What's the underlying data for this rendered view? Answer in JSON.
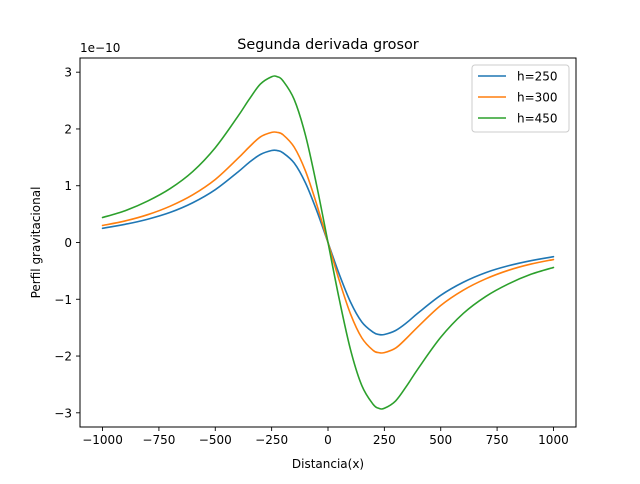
{
  "chart_data": {
    "type": "line",
    "title": "Segunda derivada grosor",
    "xlabel": "Distancia(x)",
    "ylabel": "Perfil gravitacional",
    "offset_label": "1e−10",
    "xlim": [
      -1100,
      1100
    ],
    "ylim": [
      -3.25,
      3.25
    ],
    "x_ticks": [
      -1000,
      -750,
      -500,
      -250,
      0,
      250,
      500,
      750,
      1000
    ],
    "x_tick_labels": [
      "−1000",
      "−750",
      "−500",
      "−250",
      "0",
      "250",
      "500",
      "750",
      "1000"
    ],
    "y_ticks": [
      -3,
      -2,
      -1,
      0,
      1,
      2,
      3
    ],
    "y_tick_labels": [
      "−3",
      "−2",
      "−1",
      "0",
      "1",
      "2",
      "3"
    ],
    "grid": false,
    "legend_position": "upper right",
    "x": [
      -1000,
      -900,
      -800,
      -700,
      -600,
      -500,
      -400,
      -350,
      -300,
      -250,
      -225,
      -200,
      -150,
      -100,
      -50,
      0,
      50,
      100,
      150,
      200,
      225,
      250,
      300,
      350,
      400,
      500,
      600,
      700,
      800,
      900,
      1000
    ],
    "series": [
      {
        "name": "h=250",
        "color": "#1f77b4",
        "values": [
          0.25,
          0.32,
          0.41,
          0.53,
          0.7,
          0.93,
          1.24,
          1.41,
          1.55,
          1.62,
          1.62,
          1.58,
          1.4,
          1.05,
          0.56,
          0.0,
          -0.56,
          -1.05,
          -1.4,
          -1.58,
          -1.62,
          -1.62,
          -1.55,
          -1.41,
          -1.24,
          -0.93,
          -0.7,
          -0.53,
          -0.41,
          -0.32,
          -0.25
        ]
      },
      {
        "name": "h=300",
        "color": "#ff7f0e",
        "values": [
          0.3,
          0.38,
          0.49,
          0.64,
          0.84,
          1.11,
          1.48,
          1.68,
          1.86,
          1.94,
          1.94,
          1.9,
          1.68,
          1.26,
          0.67,
          0.0,
          -0.67,
          -1.26,
          -1.68,
          -1.9,
          -1.94,
          -1.94,
          -1.86,
          -1.68,
          -1.48,
          -1.11,
          -0.84,
          -0.64,
          -0.49,
          -0.38,
          -0.3
        ]
      },
      {
        "name": "h=450",
        "color": "#2ca02c",
        "values": [
          0.44,
          0.56,
          0.73,
          0.95,
          1.25,
          1.67,
          2.22,
          2.52,
          2.79,
          2.92,
          2.92,
          2.85,
          2.52,
          1.89,
          1.0,
          0.0,
          -1.0,
          -1.89,
          -2.52,
          -2.85,
          -2.92,
          -2.92,
          -2.79,
          -2.52,
          -2.22,
          -1.67,
          -1.25,
          -0.95,
          -0.73,
          -0.56,
          -0.44
        ]
      }
    ]
  }
}
